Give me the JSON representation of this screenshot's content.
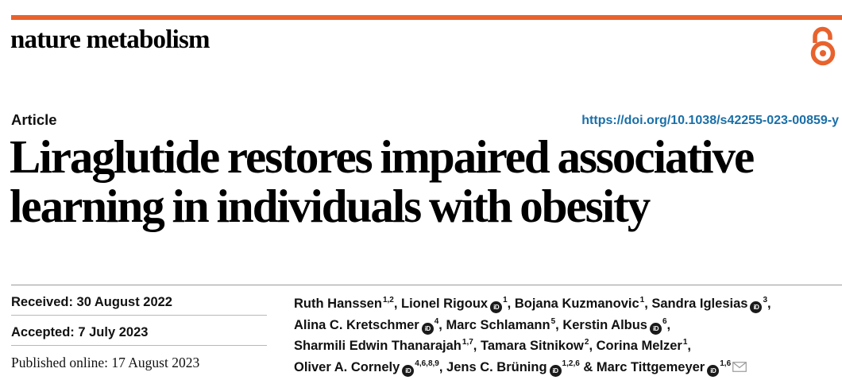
{
  "journal": {
    "name": "nature metabolism",
    "accent_color": "#e8622d",
    "open_access_icon": "open-access-lock-icon"
  },
  "article": {
    "type": "Article",
    "doi": "https://doi.org/10.1038/s42255-023-00859-y",
    "title": "Liraglutide restores impaired associative learning in individuals with obesity"
  },
  "dates": {
    "received": "Received: 30 August 2022",
    "accepted": "Accepted: 7 July 2023",
    "published": "Published online: 17 August 2023"
  },
  "author_lines": [
    [
      {
        "name": "Ruth Hanssen",
        "sup": "1,2",
        "orcid": false,
        "sep": ", "
      },
      {
        "name": "Lionel Rigoux",
        "sup": "1",
        "orcid": true,
        "sep": ", "
      },
      {
        "name": "Bojana Kuzmanovic",
        "sup": "1",
        "orcid": false,
        "sep": ", "
      },
      {
        "name": "Sandra Iglesias",
        "sup": "3",
        "orcid": true,
        "sep": ","
      }
    ],
    [
      {
        "name": "Alina C. Kretschmer",
        "sup": "4",
        "orcid": true,
        "sep": ", "
      },
      {
        "name": "Marc Schlamann",
        "sup": "5",
        "orcid": false,
        "sep": ", "
      },
      {
        "name": "Kerstin Albus",
        "sup": "6",
        "orcid": true,
        "sep": ","
      }
    ],
    [
      {
        "name": "Sharmili Edwin Thanarajah",
        "sup": "1,7",
        "orcid": false,
        "sep": ", "
      },
      {
        "name": "Tamara Sitnikow",
        "sup": "2",
        "orcid": false,
        "sep": ", "
      },
      {
        "name": "Corina Melzer",
        "sup": "1",
        "orcid": false,
        "sep": ","
      }
    ],
    [
      {
        "name": "Oliver A. Cornely",
        "sup": "4,6,8,9",
        "orcid": true,
        "sep": ", "
      },
      {
        "name": "Jens C. Brüning",
        "sup": "1,2,6",
        "orcid": true,
        "sep": " & "
      },
      {
        "name": "Marc Tittgemeyer",
        "sup": "1,6",
        "orcid": true,
        "sep": "",
        "mail": true
      }
    ]
  ],
  "icons": {
    "orcid": "orcid-icon",
    "mail": "mail-icon"
  }
}
